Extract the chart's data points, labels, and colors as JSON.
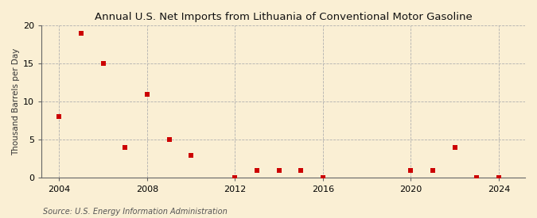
{
  "title": "Annual U.S. Net Imports from Lithuania of Conventional Motor Gasoline",
  "ylabel": "Thousand Barrels per Day",
  "source": "Source: U.S. Energy Information Administration",
  "background_color": "#faefd4",
  "data_points": [
    {
      "year": 2004,
      "value": 8
    },
    {
      "year": 2005,
      "value": 19
    },
    {
      "year": 2006,
      "value": 15
    },
    {
      "year": 2007,
      "value": 4
    },
    {
      "year": 2008,
      "value": 11
    },
    {
      "year": 2009,
      "value": 5
    },
    {
      "year": 2010,
      "value": 3
    },
    {
      "year": 2012,
      "value": 0
    },
    {
      "year": 2013,
      "value": 1
    },
    {
      "year": 2014,
      "value": 1
    },
    {
      "year": 2015,
      "value": 1
    },
    {
      "year": 2016,
      "value": 0
    },
    {
      "year": 2020,
      "value": 1
    },
    {
      "year": 2021,
      "value": 1
    },
    {
      "year": 2022,
      "value": 4
    },
    {
      "year": 2023,
      "value": 0
    },
    {
      "year": 2024,
      "value": 0
    }
  ],
  "xlim": [
    2003.2,
    2025.2
  ],
  "ylim": [
    0,
    20
  ],
  "yticks": [
    0,
    5,
    10,
    15,
    20
  ],
  "xticks": [
    2004,
    2008,
    2012,
    2016,
    2020,
    2024
  ],
  "marker_color": "#cc0000",
  "marker_size": 18,
  "grid_color": "#b0b0b0",
  "title_fontsize": 9.5,
  "label_fontsize": 7.5,
  "tick_fontsize": 8,
  "source_fontsize": 7
}
